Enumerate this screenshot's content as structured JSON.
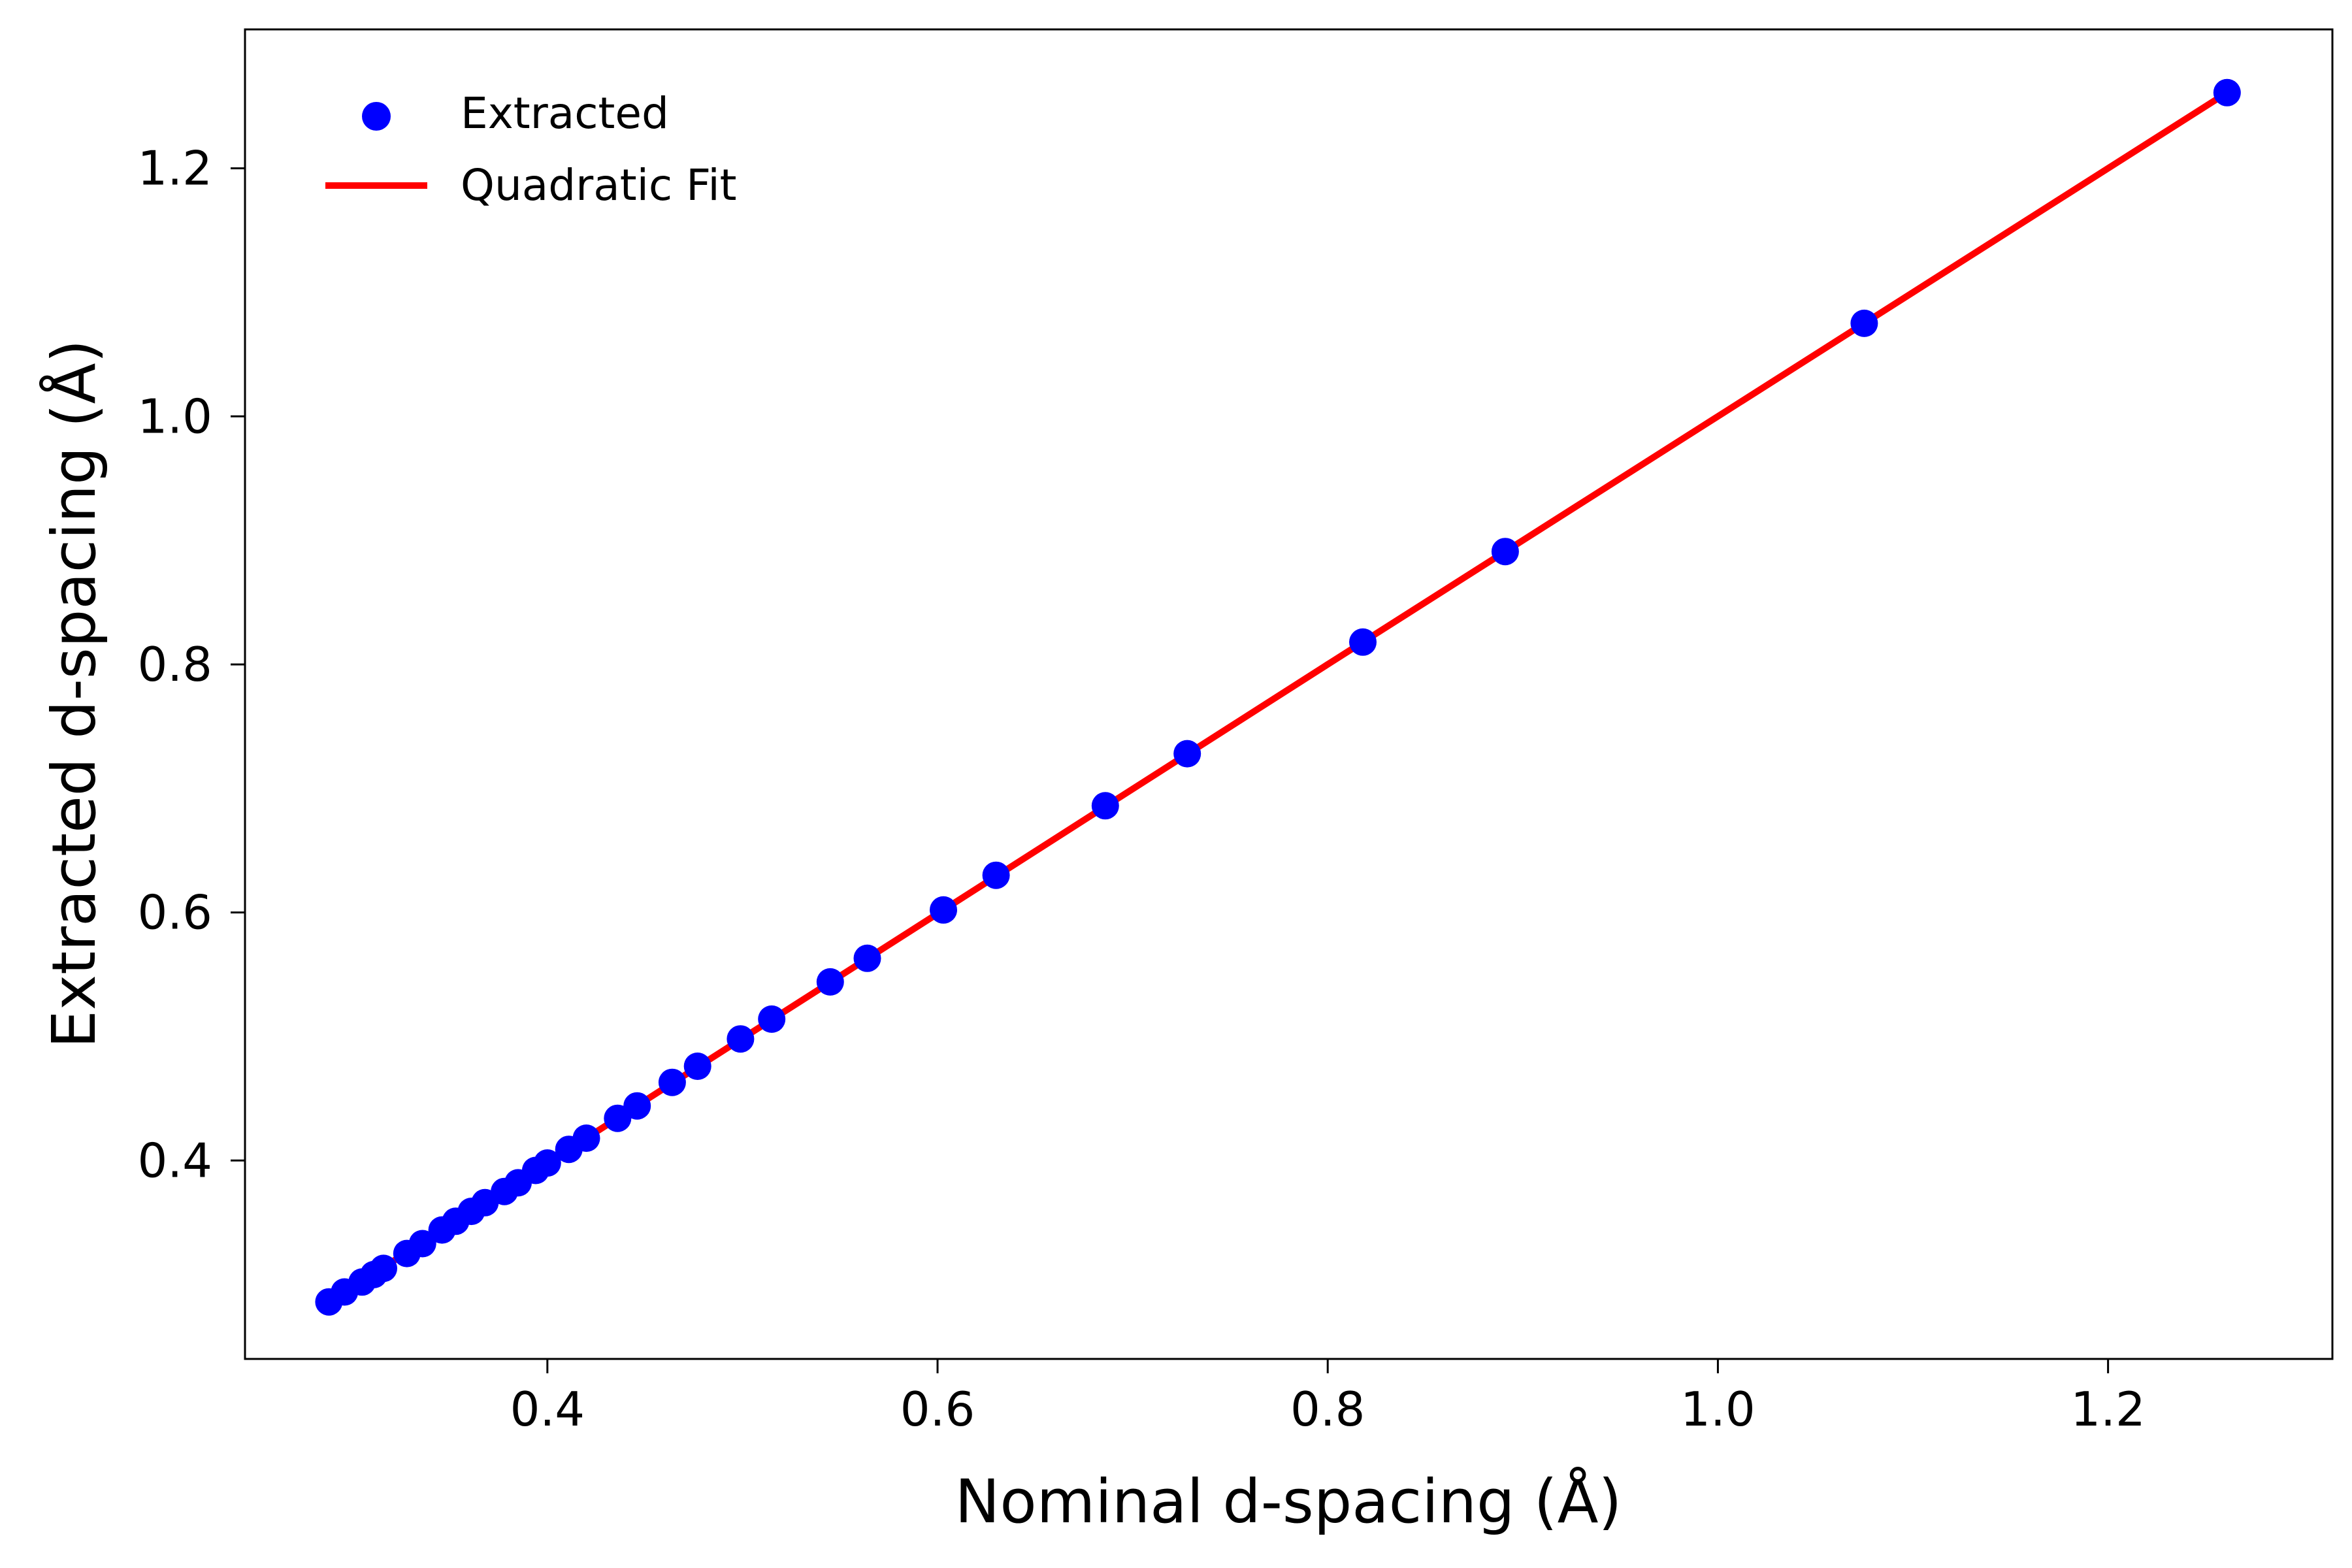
{
  "chart_data": {
    "type": "scatter",
    "xlabel": "Nominal d-spacing (Å)",
    "ylabel": "Extracted d-spacing (Å)",
    "xlim": [
      0.245,
      1.315
    ],
    "ylim": [
      0.24,
      1.312
    ],
    "xticks": [
      0.4,
      0.6,
      0.8,
      1.0,
      1.2
    ],
    "xtick_labels": [
      "0.4",
      "0.6",
      "0.8",
      "1.0",
      "1.2"
    ],
    "yticks": [
      0.4,
      0.6,
      0.8,
      1.0,
      1.2
    ],
    "ytick_labels": [
      "0.4",
      "0.6",
      "0.8",
      "1.0",
      "1.2"
    ],
    "grid": false,
    "legend": {
      "position": "top-left",
      "entries": [
        {
          "label": "Extracted",
          "marker": "circle",
          "color": "#0000ff"
        },
        {
          "label": "Quadratic Fit",
          "marker": "line",
          "color": "#ff0000"
        }
      ]
    },
    "series": [
      {
        "name": "Extracted",
        "kind": "scatter",
        "color": "#0000ff",
        "points": [
          [
            0.288,
            0.286
          ],
          [
            0.296,
            0.294
          ],
          [
            0.305,
            0.302
          ],
          [
            0.311,
            0.308
          ],
          [
            0.316,
            0.313
          ],
          [
            0.328,
            0.325
          ],
          [
            0.336,
            0.333
          ],
          [
            0.346,
            0.344
          ],
          [
            0.353,
            0.351
          ],
          [
            0.361,
            0.359
          ],
          [
            0.368,
            0.366
          ],
          [
            0.378,
            0.375
          ],
          [
            0.385,
            0.382
          ],
          [
            0.394,
            0.392
          ],
          [
            0.4,
            0.398
          ],
          [
            0.411,
            0.409
          ],
          [
            0.42,
            0.418
          ],
          [
            0.436,
            0.434
          ],
          [
            0.446,
            0.444
          ],
          [
            0.464,
            0.463
          ],
          [
            0.477,
            0.476
          ],
          [
            0.499,
            0.498
          ],
          [
            0.515,
            0.514
          ],
          [
            0.545,
            0.544
          ],
          [
            0.564,
            0.563
          ],
          [
            0.603,
            0.602
          ],
          [
            0.63,
            0.63
          ],
          [
            0.686,
            0.686
          ],
          [
            0.728,
            0.728
          ],
          [
            0.818,
            0.818
          ],
          [
            0.891,
            0.891
          ],
          [
            1.075,
            1.075
          ],
          [
            1.261,
            1.261
          ]
        ]
      },
      {
        "name": "Quadratic Fit",
        "kind": "line",
        "color": "#ff0000",
        "points": [
          [
            0.288,
            0.286
          ],
          [
            0.4,
            0.398
          ],
          [
            0.6,
            0.599
          ],
          [
            0.8,
            0.8
          ],
          [
            1.0,
            1.0
          ],
          [
            1.261,
            1.261
          ]
        ]
      }
    ]
  }
}
